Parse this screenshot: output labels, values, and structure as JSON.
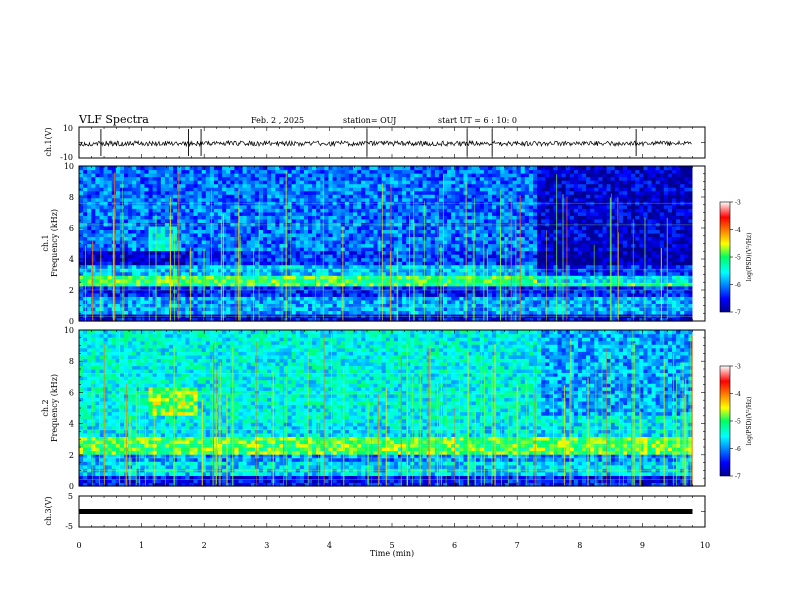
{
  "header": {
    "title": "VLF Spectra",
    "date": "Feb. 2 , 2025",
    "station": "station= OUJ",
    "start_ut": "start  UT =  6 : 10: 0"
  },
  "chart_data": [
    {
      "type": "line",
      "ylabel": "ch.1(V)",
      "ylim": [
        -10,
        10
      ],
      "yticks": [
        "10",
        "-10"
      ],
      "baseline": 0,
      "xlim": [
        0,
        10
      ]
    },
    {
      "type": "heatmap",
      "ylabel_top": "ch.1",
      "ylabel": "Frequency (kHz)",
      "ylim": [
        0,
        10
      ],
      "yticks": [
        "0",
        "2",
        "4",
        "6",
        "8",
        "10"
      ],
      "xlim": [
        0,
        10
      ],
      "data_end": 9.8,
      "colorbar": {
        "min": -7,
        "max": -3,
        "ticks": [
          "-3",
          "-4",
          "-5",
          "-6",
          "-7"
        ],
        "label": "log(PSD)(V²/Hz)"
      },
      "bands": [
        {
          "f": [
            0.0,
            0.5
          ],
          "v": -6.6
        },
        {
          "f": [
            0.5,
            1.5
          ],
          "v": -5.9
        },
        {
          "f": [
            1.5,
            2.2
          ],
          "v": -6.4
        },
        {
          "f": [
            2.2,
            3.0
          ],
          "v": -5.0
        },
        {
          "f": [
            3.0,
            3.6
          ],
          "v": -5.8
        },
        {
          "f": [
            3.6,
            4.6
          ],
          "v": -6.3
        },
        {
          "f": [
            4.6,
            10.0
          ],
          "v": -6.1
        }
      ]
    },
    {
      "type": "heatmap",
      "ylabel_top": "ch.2",
      "ylabel": "Frequency (kHz)",
      "ylim": [
        0,
        10
      ],
      "yticks": [
        "0",
        "2",
        "4",
        "6",
        "8",
        "10"
      ],
      "xlim": [
        0,
        10
      ],
      "data_end": 9.8,
      "colorbar": {
        "min": -7,
        "max": -3,
        "ticks": [
          "-3",
          "-4",
          "-5",
          "-6",
          "-7"
        ],
        "label": "log(PSD)(V²/Hz)"
      },
      "bands": [
        {
          "f": [
            0.0,
            0.6
          ],
          "v": -6.5
        },
        {
          "f": [
            0.6,
            1.6
          ],
          "v": -5.7
        },
        {
          "f": [
            1.6,
            2.0
          ],
          "v": -6.0
        },
        {
          "f": [
            2.0,
            3.2
          ],
          "v": -4.9
        },
        {
          "f": [
            3.2,
            4.2
          ],
          "v": -5.6
        },
        {
          "f": [
            4.2,
            10.0
          ],
          "v": -5.5
        }
      ]
    },
    {
      "type": "line",
      "ylabel": "ch.3(V)",
      "ylim": [
        -5,
        5
      ],
      "yticks": [
        "5",
        "-5"
      ],
      "baseline": 0,
      "xlim": [
        0,
        10
      ]
    }
  ],
  "x_axis": {
    "label": "Time (min)",
    "ticks": [
      "0",
      "1",
      "2",
      "3",
      "4",
      "5",
      "6",
      "7",
      "8",
      "9",
      "10"
    ]
  }
}
